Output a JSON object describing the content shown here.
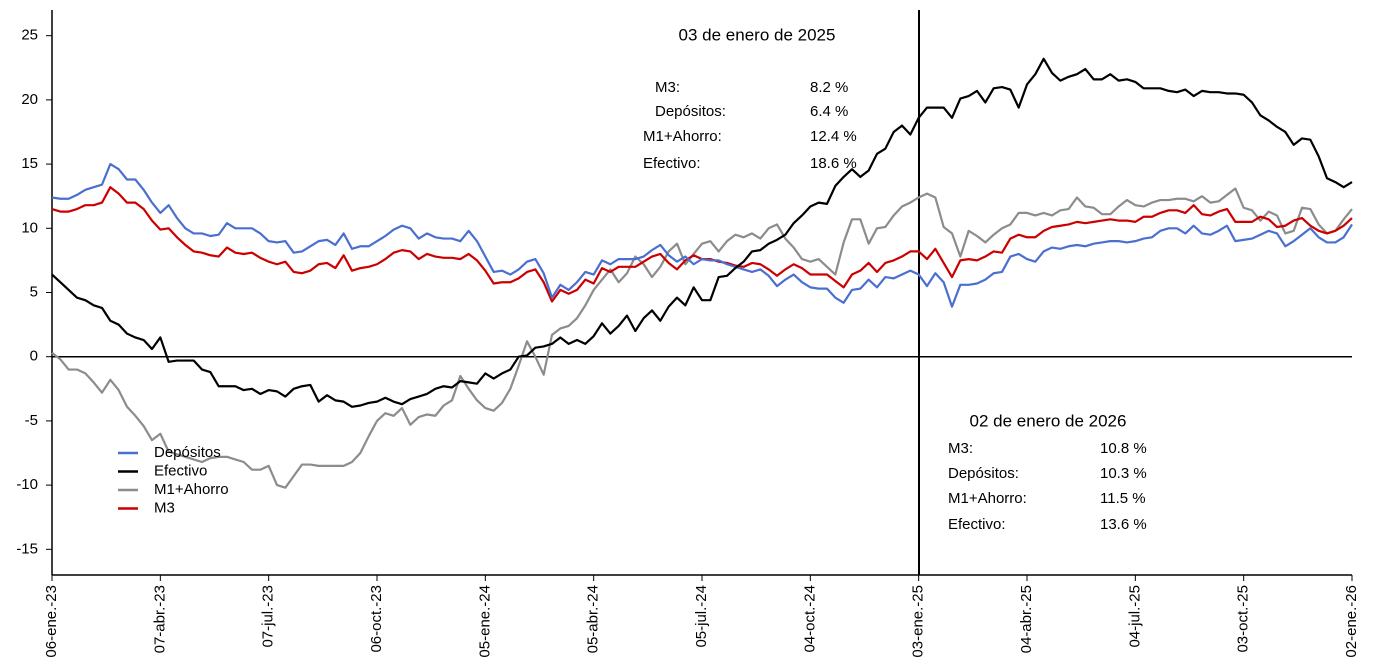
{
  "chart_data": {
    "type": "line",
    "categories": [
      "06-ene.-23",
      null,
      null,
      null,
      null,
      null,
      null,
      null,
      null,
      null,
      null,
      null,
      null,
      "07-abr.-23",
      null,
      null,
      null,
      null,
      null,
      null,
      null,
      null,
      null,
      null,
      null,
      null,
      "07-jul.-23",
      null,
      null,
      null,
      null,
      null,
      null,
      null,
      null,
      null,
      null,
      null,
      null,
      "06-oct.-23",
      null,
      null,
      null,
      null,
      null,
      null,
      null,
      null,
      null,
      null,
      null,
      null,
      "05-ene.-24",
      null,
      null,
      null,
      null,
      null,
      null,
      null,
      null,
      null,
      null,
      null,
      null,
      "05-abr.-24",
      null,
      null,
      null,
      null,
      null,
      null,
      null,
      null,
      null,
      null,
      null,
      null,
      "05-jul.-24",
      null,
      null,
      null,
      null,
      null,
      null,
      null,
      null,
      null,
      null,
      null,
      null,
      "04-oct.-24",
      null,
      null,
      null,
      null,
      null,
      null,
      null,
      null,
      null,
      null,
      null,
      null,
      "03-ene.-25",
      null,
      null,
      null,
      null,
      null,
      null,
      null,
      null,
      null,
      null,
      null,
      null,
      "04-abr.-25",
      null,
      null,
      null,
      null,
      null,
      null,
      null,
      null,
      null,
      null,
      null,
      null,
      "04-jul.-25",
      null,
      null,
      null,
      null,
      null,
      null,
      null,
      null,
      null,
      null,
      null,
      null,
      "03-oct.-25",
      null,
      null,
      null,
      null,
      null,
      null,
      null,
      null,
      null,
      null,
      null,
      null,
      "02-ene.-26"
    ],
    "series": [
      {
        "name": "Depósitos",
        "color": "#4a6fd0",
        "values": [
          12.4,
          12.3,
          12.3,
          12.6,
          13.0,
          13.2,
          13.4,
          15.0,
          14.6,
          13.8,
          13.8,
          13.0,
          12.0,
          11.2,
          11.8,
          10.8,
          10.0,
          9.6,
          9.6,
          9.4,
          9.5,
          10.4,
          10.0,
          10.0,
          10.0,
          9.6,
          9.0,
          8.9,
          9.0,
          8.1,
          8.2,
          8.6,
          9.0,
          9.1,
          8.7,
          9.6,
          8.4,
          8.6,
          8.6,
          9.0,
          9.4,
          9.9,
          10.2,
          10.0,
          9.2,
          9.6,
          9.3,
          9.2,
          9.2,
          9.0,
          9.8,
          9.0,
          7.8,
          6.6,
          6.7,
          6.4,
          6.8,
          7.4,
          7.6,
          6.5,
          4.6,
          5.6,
          5.2,
          5.8,
          6.6,
          6.4,
          7.5,
          7.2,
          7.6,
          7.6,
          7.6,
          7.8,
          8.3,
          8.7,
          7.9,
          7.4,
          7.8,
          7.2,
          7.6,
          7.5,
          7.5,
          7.2,
          7.0,
          6.8,
          6.6,
          6.8,
          6.3,
          5.5,
          6.0,
          6.4,
          5.8,
          5.4,
          5.3,
          5.3,
          4.6,
          4.2,
          5.2,
          5.3,
          6.0,
          5.4,
          6.2,
          6.1,
          6.4,
          6.7,
          6.4,
          5.5,
          6.5,
          5.8,
          3.9,
          5.6,
          5.6,
          5.7,
          6.0,
          6.5,
          6.6,
          7.8,
          8.0,
          7.6,
          7.4,
          8.2,
          8.5,
          8.4,
          8.6,
          8.7,
          8.6,
          8.8,
          8.9,
          9.0,
          9.0,
          8.9,
          9.0,
          9.2,
          9.3,
          9.8,
          10.0,
          10.0,
          9.6,
          10.2,
          9.6,
          9.5,
          9.8,
          10.2,
          9.0,
          9.1,
          9.2,
          9.5,
          9.8,
          9.6,
          8.6,
          9.0,
          9.5,
          10.0,
          9.3,
          8.9,
          8.9,
          9.3,
          10.3
        ]
      },
      {
        "name": "Efectivo",
        "color": "#000000",
        "values": [
          6.4,
          5.8,
          5.2,
          4.6,
          4.4,
          4.0,
          3.8,
          2.8,
          2.5,
          1.8,
          1.5,
          1.3,
          0.6,
          1.5,
          -0.4,
          -0.3,
          -0.3,
          -0.3,
          -1.0,
          -1.2,
          -2.3,
          -2.3,
          -2.3,
          -2.6,
          -2.5,
          -2.9,
          -2.6,
          -2.7,
          -3.1,
          -2.5,
          -2.3,
          -2.2,
          -3.5,
          -3.0,
          -3.4,
          -3.5,
          -3.9,
          -3.8,
          -3.6,
          -3.5,
          -3.2,
          -3.5,
          -3.7,
          -3.3,
          -3.1,
          -2.9,
          -2.5,
          -2.3,
          -2.4,
          -1.9,
          -2.0,
          -2.1,
          -1.3,
          -1.7,
          -1.3,
          -1.0,
          0.0,
          0.1,
          0.7,
          0.8,
          1.0,
          1.5,
          1.0,
          1.3,
          1.0,
          1.6,
          2.6,
          1.8,
          2.4,
          3.2,
          2.0,
          3.0,
          3.6,
          2.8,
          3.9,
          4.6,
          4.0,
          5.4,
          4.4,
          4.4,
          6.2,
          6.3,
          6.9,
          7.4,
          8.2,
          8.3,
          8.8,
          9.1,
          9.5,
          10.4,
          11.0,
          11.7,
          12.0,
          11.9,
          13.3,
          14.0,
          14.6,
          14.0,
          14.5,
          15.8,
          16.2,
          17.5,
          18.0,
          17.3,
          18.6,
          19.4,
          19.4,
          19.4,
          18.6,
          20.1,
          20.3,
          20.7,
          19.8,
          20.9,
          21.0,
          20.8,
          19.4,
          21.2,
          22.0,
          23.2,
          22.1,
          21.5,
          21.8,
          22.0,
          22.4,
          21.6,
          21.6,
          22.0,
          21.5,
          21.6,
          21.4,
          20.9,
          20.9,
          20.9,
          20.7,
          20.6,
          20.8,
          20.3,
          20.7,
          20.6,
          20.6,
          20.5,
          20.5,
          20.4,
          19.8,
          18.8,
          18.4,
          17.9,
          17.5,
          16.5,
          17.0,
          16.9,
          15.6,
          13.9,
          13.6,
          13.2,
          13.6
        ]
      },
      {
        "name": "M1+Ahorro",
        "color": "#8c8c8c",
        "values": [
          0.3,
          -0.2,
          -1.0,
          -1.0,
          -1.3,
          -2.0,
          -2.8,
          -1.8,
          -2.6,
          -3.9,
          -4.6,
          -5.4,
          -6.5,
          -6.0,
          -7.4,
          -7.6,
          -7.8,
          -8.0,
          -8.2,
          -7.9,
          -7.8,
          -7.8,
          -8.0,
          -8.2,
          -8.8,
          -8.8,
          -8.5,
          -10.0,
          -10.2,
          -9.3,
          -8.4,
          -8.4,
          -8.5,
          -8.5,
          -8.5,
          -8.5,
          -8.2,
          -7.5,
          -6.2,
          -5.0,
          -4.4,
          -4.6,
          -4.0,
          -5.3,
          -4.7,
          -4.5,
          -4.6,
          -3.8,
          -3.4,
          -1.5,
          -2.5,
          -3.4,
          -4.0,
          -4.2,
          -3.6,
          -2.5,
          -0.7,
          1.2,
          0.0,
          -1.4,
          1.7,
          2.2,
          2.4,
          3.0,
          4.0,
          5.2,
          6.0,
          6.8,
          5.8,
          6.5,
          7.8,
          7.2,
          6.2,
          7.0,
          8.2,
          8.8,
          7.2,
          8.0,
          8.8,
          9.0,
          8.2,
          9.0,
          9.5,
          9.3,
          9.6,
          9.2,
          10.0,
          10.3,
          9.2,
          8.5,
          7.6,
          7.4,
          7.6,
          7.0,
          6.4,
          8.9,
          10.7,
          10.7,
          8.8,
          10.0,
          10.1,
          11.0,
          11.7,
          12.0,
          12.4,
          12.7,
          12.4,
          10.1,
          9.6,
          7.8,
          9.8,
          9.4,
          8.9,
          9.5,
          10.0,
          10.3,
          11.2,
          11.2,
          11.0,
          11.2,
          11.0,
          11.4,
          11.5,
          12.4,
          11.7,
          11.6,
          11.1,
          11.1,
          11.7,
          12.2,
          11.8,
          11.7,
          12.0,
          12.2,
          12.2,
          12.3,
          12.3,
          12.1,
          12.5,
          12.0,
          12.1,
          12.6,
          13.1,
          11.6,
          11.4,
          10.6,
          11.3,
          11.0,
          9.6,
          9.8,
          11.6,
          11.5,
          10.3,
          9.6,
          9.8,
          10.7,
          11.5
        ]
      },
      {
        "name": "M3",
        "color": "#cc0000",
        "values": [
          11.5,
          11.3,
          11.3,
          11.5,
          11.8,
          11.8,
          12.0,
          13.2,
          12.7,
          12.0,
          12.0,
          11.5,
          10.6,
          9.9,
          10.0,
          9.3,
          8.7,
          8.2,
          8.1,
          7.9,
          7.8,
          8.5,
          8.1,
          8.0,
          8.1,
          7.7,
          7.4,
          7.2,
          7.4,
          6.6,
          6.5,
          6.7,
          7.2,
          7.3,
          6.9,
          7.9,
          6.7,
          6.9,
          7.0,
          7.2,
          7.6,
          8.1,
          8.3,
          8.2,
          7.6,
          8.0,
          7.8,
          7.7,
          7.7,
          7.6,
          8.0,
          7.5,
          6.7,
          5.7,
          5.8,
          5.8,
          6.1,
          6.6,
          6.8,
          5.8,
          4.3,
          5.2,
          4.9,
          5.2,
          6.0,
          5.7,
          6.9,
          6.6,
          7.0,
          7.0,
          7.0,
          7.4,
          7.8,
          8.0,
          7.3,
          6.8,
          7.5,
          7.9,
          7.6,
          7.6,
          7.4,
          7.3,
          7.1,
          7.0,
          7.3,
          7.2,
          6.8,
          6.3,
          6.8,
          7.2,
          6.9,
          6.4,
          6.4,
          6.4,
          5.9,
          5.4,
          6.4,
          6.7,
          7.3,
          6.6,
          7.3,
          7.5,
          7.8,
          8.2,
          8.2,
          7.6,
          8.4,
          7.3,
          6.2,
          7.5,
          7.6,
          7.5,
          7.8,
          8.2,
          8.1,
          9.2,
          9.5,
          9.3,
          9.3,
          9.8,
          10.1,
          10.2,
          10.3,
          10.5,
          10.4,
          10.5,
          10.6,
          10.7,
          10.6,
          10.6,
          10.5,
          10.9,
          10.9,
          11.2,
          11.4,
          11.4,
          11.2,
          11.8,
          11.1,
          11.0,
          11.3,
          11.5,
          10.5,
          10.5,
          10.5,
          10.9,
          10.7,
          10.1,
          10.2,
          10.6,
          10.8,
          10.2,
          9.8,
          9.6,
          9.8,
          10.2,
          10.8
        ]
      }
    ],
    "ylim": [
      -17,
      27
    ],
    "yticks": [
      -15,
      -10,
      -5,
      0,
      5,
      10,
      15,
      20,
      25
    ],
    "legend": "lower left",
    "annotations": [
      {
        "title": "03 de enero de 2025",
        "rows": [
          {
            "label": "M3:",
            "value": "8.2 %"
          },
          {
            "label": "Depósitos:",
            "value": "6.4 %"
          },
          {
            "label": "M1+Ahorro:",
            "value": "12.4 %"
          },
          {
            "label": "Efectivo:",
            "value": "18.6 %"
          }
        ]
      },
      {
        "title": "02 de enero de 2026",
        "rows": [
          {
            "label": "M3:",
            "value": "10.8 %"
          },
          {
            "label": "Depósitos:",
            "value": "10.3 %"
          },
          {
            "label": "M1+Ahorro:",
            "value": "11.5 %"
          },
          {
            "label": "Efectivo:",
            "value": "13.6 %"
          }
        ]
      }
    ]
  }
}
